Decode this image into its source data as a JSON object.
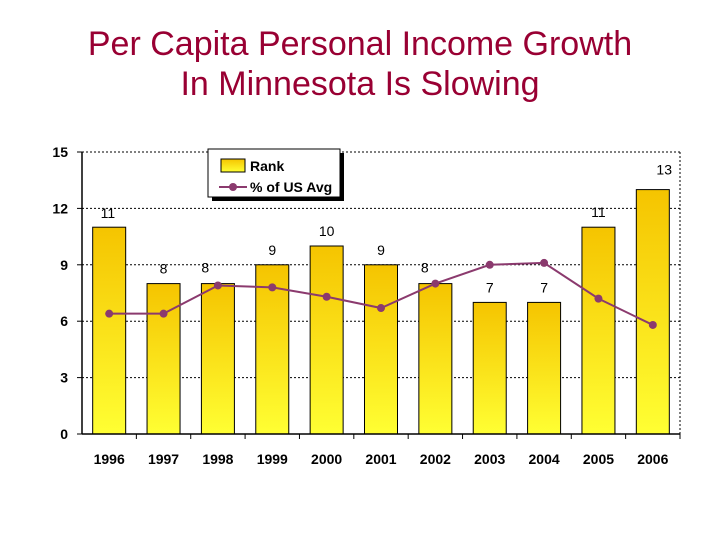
{
  "slide": {
    "title_line1": "Per Capita Personal Income Growth",
    "title_line2": "In Minnesota Is Slowing"
  },
  "colors": {
    "title": "#990033",
    "bar_top": "#F5C400",
    "bar_bottom": "#FFFF33",
    "line": "#8B3A6E",
    "grid": "#000000"
  },
  "chart_data": {
    "type": "bar",
    "title": "",
    "xlabel": "",
    "ylabel": "",
    "ylim": [
      0,
      15
    ],
    "yticks": [
      0,
      3,
      6,
      9,
      12,
      15
    ],
    "grid": true,
    "legend_position": "top-center",
    "categories": [
      "1996",
      "1997",
      "1998",
      "1999",
      "2000",
      "2001",
      "2002",
      "2003",
      "2004",
      "2005",
      "2006"
    ],
    "series": [
      {
        "name": "Rank",
        "type": "bar",
        "values": [
          11,
          8,
          8,
          9,
          10,
          9,
          8,
          7,
          7,
          11,
          13
        ],
        "labels": [
          "11",
          "8",
          "8",
          "9",
          "10",
          "9",
          "8",
          "7",
          "7",
          "11",
          "13"
        ]
      },
      {
        "name": "% of US Avg",
        "type": "line",
        "values": [
          6.4,
          6.4,
          7.9,
          7.8,
          7.3,
          6.7,
          8.0,
          9.0,
          9.1,
          7.2,
          5.8
        ]
      }
    ]
  }
}
